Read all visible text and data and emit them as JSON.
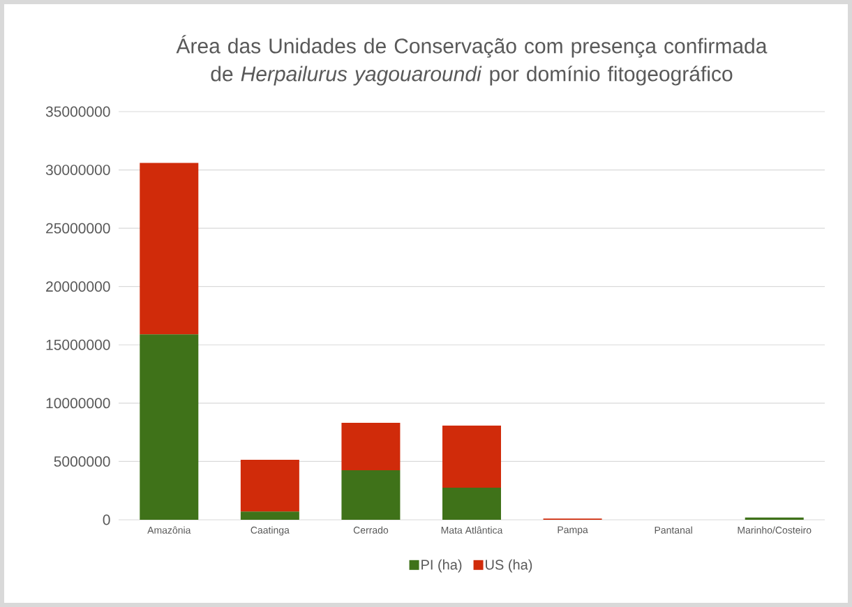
{
  "chart_data": {
    "type": "bar",
    "stacked": true,
    "title": "Área das Unidades de Conservação com presença confirmada de *Herpailurus yagouaroundi* por domínio fitogeográfico",
    "categories": [
      "Amazônia",
      "Caatinga",
      "Cerrado",
      "Mata Atlântica",
      "Pampa",
      "Pantanal",
      "Marinho/Costeiro"
    ],
    "series": [
      {
        "name": "PI (ha)",
        "color": "#3f7219",
        "values": [
          15900000,
          700000,
          4250000,
          2750000,
          0,
          0,
          200000
        ]
      },
      {
        "name": "US (ha)",
        "color": "#d02b0a",
        "values": [
          14700000,
          4450000,
          4070000,
          5330000,
          100000,
          0,
          0
        ]
      }
    ],
    "ylim": [
      0,
      35000000
    ],
    "yticks": [
      0,
      5000000,
      10000000,
      15000000,
      20000000,
      25000000,
      30000000,
      35000000
    ],
    "grid": "y",
    "legend": "bottom"
  }
}
